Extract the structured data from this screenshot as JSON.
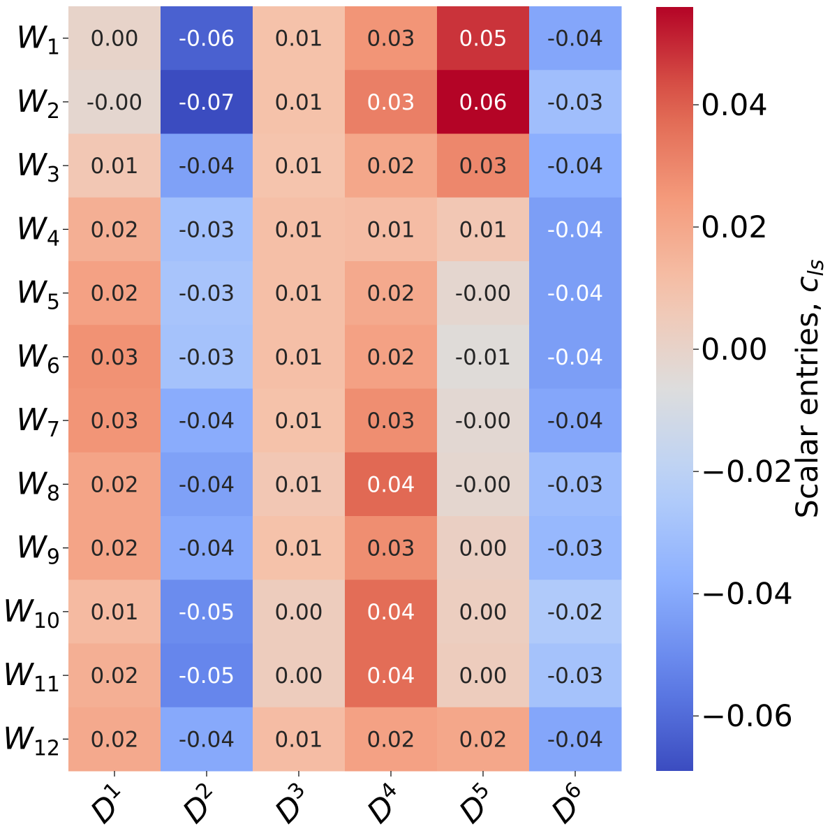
{
  "chart_data": {
    "type": "heatmap",
    "title": "",
    "colormap": "coolwarm",
    "vmin": -0.069,
    "vmax": 0.056,
    "row_labels": [
      {
        "base": "W",
        "sub": "1"
      },
      {
        "base": "W",
        "sub": "2"
      },
      {
        "base": "W",
        "sub": "3"
      },
      {
        "base": "W",
        "sub": "4"
      },
      {
        "base": "W",
        "sub": "5"
      },
      {
        "base": "W",
        "sub": "6"
      },
      {
        "base": "W",
        "sub": "7"
      },
      {
        "base": "W",
        "sub": "8"
      },
      {
        "base": "W",
        "sub": "9"
      },
      {
        "base": "W",
        "sub": "10"
      },
      {
        "base": "W",
        "sub": "11"
      },
      {
        "base": "W",
        "sub": "12"
      }
    ],
    "col_labels": [
      {
        "base": "D",
        "sup": "1"
      },
      {
        "base": "D",
        "sup": "2"
      },
      {
        "base": "D",
        "sup": "3"
      },
      {
        "base": "D",
        "sup": "4"
      },
      {
        "base": "D",
        "sup": "5"
      },
      {
        "base": "D",
        "sup": "6"
      }
    ],
    "values": [
      [
        0.0,
        -0.063,
        0.01,
        0.026,
        0.048,
        -0.041
      ],
      [
        -0.002,
        -0.069,
        0.01,
        0.032,
        0.056,
        -0.031
      ],
      [
        0.007,
        -0.043,
        0.009,
        0.02,
        0.03,
        -0.038
      ],
      [
        0.017,
        -0.03,
        0.011,
        0.012,
        0.007,
        -0.044
      ],
      [
        0.022,
        -0.028,
        0.011,
        0.019,
        -0.002,
        -0.044
      ],
      [
        0.027,
        -0.029,
        0.011,
        0.022,
        -0.005,
        -0.044
      ],
      [
        0.026,
        -0.039,
        0.01,
        0.028,
        -0.003,
        -0.041
      ],
      [
        0.021,
        -0.043,
        0.007,
        0.038,
        -0.002,
        -0.032
      ],
      [
        0.021,
        -0.04,
        0.01,
        0.028,
        0.002,
        -0.034
      ],
      [
        0.013,
        -0.05,
        0.004,
        0.037,
        0.003,
        -0.025
      ],
      [
        0.017,
        -0.052,
        0.004,
        0.037,
        0.004,
        -0.029
      ],
      [
        0.019,
        -0.04,
        0.012,
        0.022,
        0.02,
        -0.041
      ]
    ],
    "annotations": [
      [
        "0.00",
        "-0.06",
        "0.01",
        "0.03",
        "0.05",
        "-0.04"
      ],
      [
        "-0.00",
        "-0.07",
        "0.01",
        "0.03",
        "0.06",
        "-0.03"
      ],
      [
        "0.01",
        "-0.04",
        "0.01",
        "0.02",
        "0.03",
        "-0.04"
      ],
      [
        "0.02",
        "-0.03",
        "0.01",
        "0.01",
        "0.01",
        "-0.04"
      ],
      [
        "0.02",
        "-0.03",
        "0.01",
        "0.02",
        "-0.00",
        "-0.04"
      ],
      [
        "0.03",
        "-0.03",
        "0.01",
        "0.02",
        "-0.01",
        "-0.04"
      ],
      [
        "0.03",
        "-0.04",
        "0.01",
        "0.03",
        "-0.00",
        "-0.04"
      ],
      [
        "0.02",
        "-0.04",
        "0.01",
        "0.04",
        "-0.00",
        "-0.03"
      ],
      [
        "0.02",
        "-0.04",
        "0.01",
        "0.03",
        "0.00",
        "-0.03"
      ],
      [
        "0.01",
        "-0.05",
        "0.00",
        "0.04",
        "0.00",
        "-0.02"
      ],
      [
        "0.02",
        "-0.05",
        "0.00",
        "0.04",
        "0.00",
        "-0.03"
      ],
      [
        "0.02",
        "-0.04",
        "0.01",
        "0.02",
        "0.02",
        "-0.04"
      ]
    ],
    "colorbar": {
      "label_text": "Scalar entries, ",
      "label_symbol": "c",
      "label_symbol_sub": "ls",
      "ticks": [
        {
          "value": 0.04,
          "label": "0.04"
        },
        {
          "value": 0.02,
          "label": "0.02"
        },
        {
          "value": 0.0,
          "label": "0.00"
        },
        {
          "value": -0.02,
          "label": "−0.02"
        },
        {
          "value": -0.04,
          "label": "−0.04"
        },
        {
          "value": -0.06,
          "label": "−0.06"
        }
      ]
    }
  }
}
